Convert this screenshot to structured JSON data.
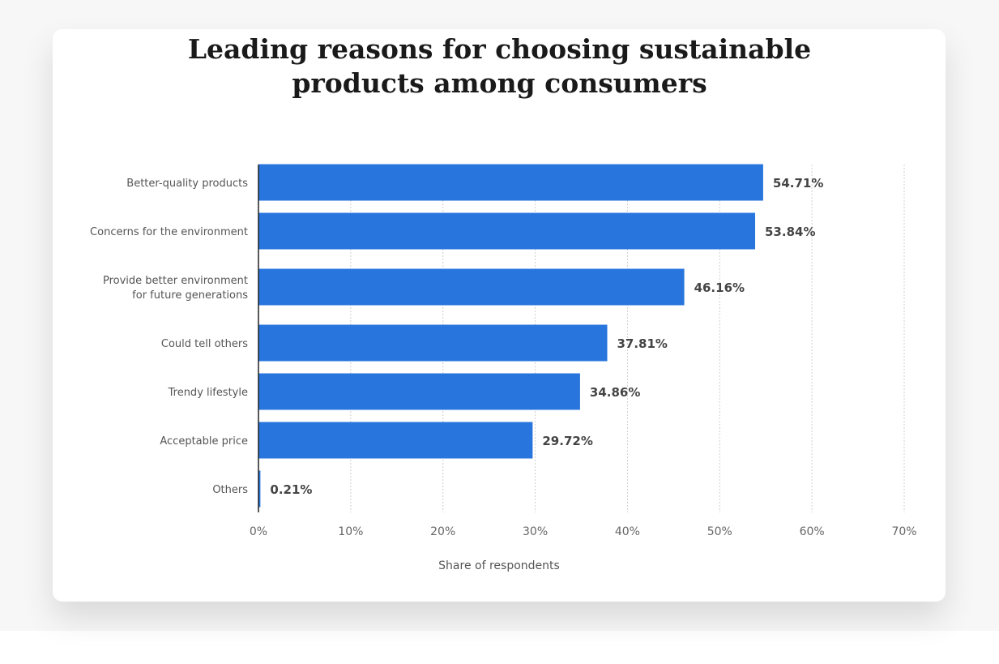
{
  "chart_data": {
    "type": "bar",
    "orientation": "horizontal",
    "title": "Leading reasons for choosing sustainable products among consumers",
    "title_lines": [
      "Leading reasons for choosing sustainable",
      "products among consumers"
    ],
    "categories": [
      [
        "Better-quality products"
      ],
      [
        "Concerns for the environment"
      ],
      [
        "Provide better environment",
        "for future generations"
      ],
      [
        "Could tell others"
      ],
      [
        "Trendy lifestyle"
      ],
      [
        "Acceptable price"
      ],
      [
        "Others"
      ]
    ],
    "values": [
      54.71,
      53.84,
      46.16,
      37.81,
      34.86,
      29.72,
      0.21
    ],
    "value_labels": [
      "54.71%",
      "53.84%",
      "46.16%",
      "37.81%",
      "34.86%",
      "29.72%",
      "0.21%"
    ],
    "xlabel": "Share of respondents",
    "ylabel": "",
    "xlim": [
      0,
      70
    ],
    "ticks": [
      0,
      10,
      20,
      30,
      40,
      50,
      60,
      70
    ],
    "tick_labels": [
      "0%",
      "10%",
      "20%",
      "30%",
      "40%",
      "50%",
      "60%",
      "70%"
    ],
    "grid": true,
    "bar_color": "#2876dd"
  }
}
